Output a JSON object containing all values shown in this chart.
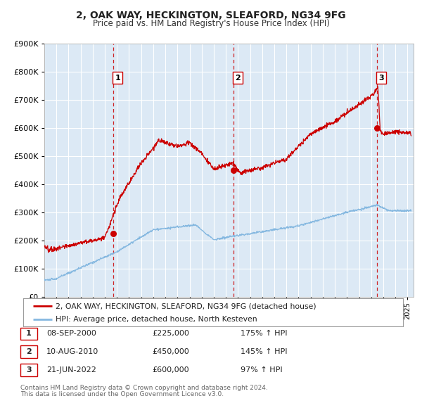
{
  "title": "2, OAK WAY, HECKINGTON, SLEAFORD, NG34 9FG",
  "subtitle": "Price paid vs. HM Land Registry's House Price Index (HPI)",
  "fig_bg_color": "#ffffff",
  "plot_bg_color": "#dce9f5",
  "red_line_color": "#cc0000",
  "blue_line_color": "#85b8e0",
  "sale_marker_color": "#cc0000",
  "vline_color": "#cc0000",
  "grid_color": "#ffffff",
  "legend_line1": "2, OAK WAY, HECKINGTON, SLEAFORD, NG34 9FG (detached house)",
  "legend_line2": "HPI: Average price, detached house, North Kesteven",
  "sale1_date": "08-SEP-2000",
  "sale1_year": 2000.69,
  "sale1_price": 225000,
  "sale2_date": "10-AUG-2010",
  "sale2_year": 2010.61,
  "sale2_price": 450000,
  "sale3_date": "21-JUN-2022",
  "sale3_year": 2022.47,
  "sale3_price": 600000,
  "sale1_pct": "175%",
  "sale2_pct": "145%",
  "sale3_pct": "97%",
  "footnote1": "Contains HM Land Registry data © Crown copyright and database right 2024.",
  "footnote2": "This data is licensed under the Open Government Licence v3.0.",
  "ylim_max": 900000,
  "xmin": 1995.0,
  "xmax": 2025.5
}
